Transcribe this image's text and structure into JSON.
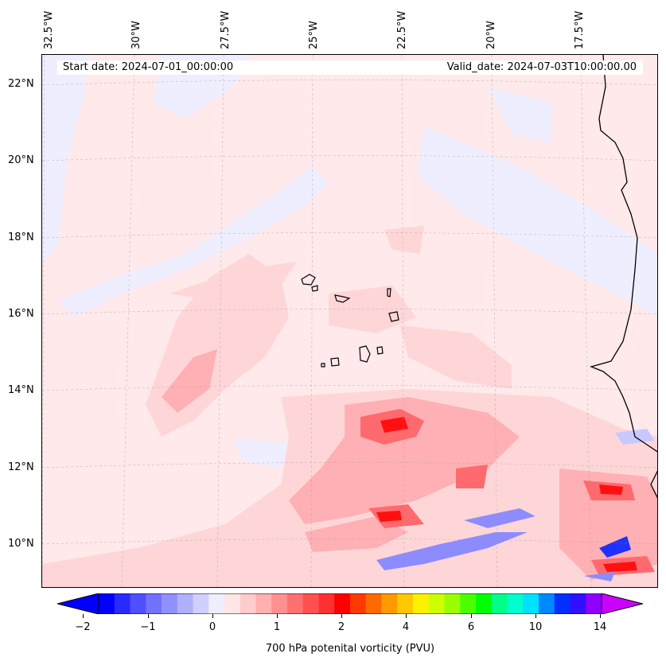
{
  "map": {
    "lon_labels": [
      "32.5°W",
      "30°W",
      "27.5°W",
      "25°W",
      "22.5°W",
      "20°W",
      "17.5°W"
    ],
    "lat_labels": [
      "22°N",
      "20°N",
      "18°N",
      "16°N",
      "14°N",
      "12°N",
      "10°N"
    ],
    "start_date": "Start date: 2024-07-01_00:00:00",
    "valid_date": "Valid_date: 2024-07-03T10:00:00.00",
    "background_color": "#ffe9ea"
  },
  "colorbar": {
    "label": "700 hPa potenital vorticity (PVU)",
    "ticks": [
      "−2",
      "−1",
      "0",
      "1",
      "2",
      "4",
      "6",
      "10",
      "14"
    ],
    "colors": [
      "#0000ff",
      "#2a2aff",
      "#4f4fff",
      "#7272ff",
      "#9090ff",
      "#b0b0ff",
      "#d0d0ff",
      "#eeeeff",
      "#ffe6e6",
      "#ffcccc",
      "#ffb0b0",
      "#ff9090",
      "#ff7070",
      "#ff5050",
      "#ff3030",
      "#ff0000",
      "#ff3a00",
      "#ff6a00",
      "#ff9a00",
      "#ffc800",
      "#fff000",
      "#ccff00",
      "#99ff00",
      "#4cff00",
      "#00ff00",
      "#00ff88",
      "#00ffcc",
      "#00e0ff",
      "#0088ff",
      "#0030ff",
      "#3010ff",
      "#9000ff"
    ]
  }
}
